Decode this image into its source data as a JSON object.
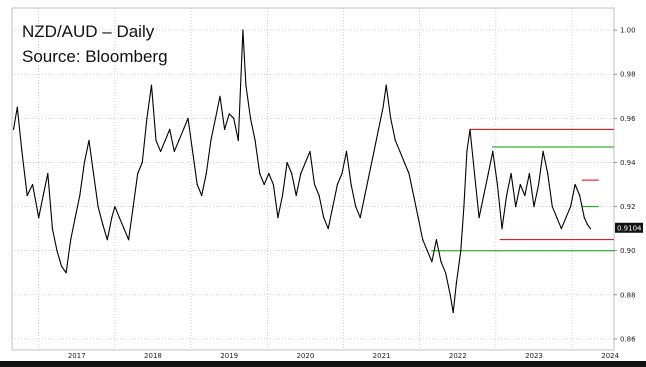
{
  "title": "NZD/AUD – Daily",
  "subtitle": "Source: Bloomberg",
  "chart_data": {
    "type": "line",
    "title": "NZD/AUD – Daily",
    "subtitle": "Source: Bloomberg",
    "xlabel": "",
    "ylabel": "",
    "xlim": [
      2016.65,
      2024.55
    ],
    "ylim": [
      0.855,
      1.01
    ],
    "yticks": [
      0.86,
      0.88,
      0.9,
      0.92,
      0.94,
      0.96,
      0.98,
      1.0
    ],
    "ytick_labels": [
      "0.86",
      "0.88",
      "0.90",
      "0.92",
      "0.94",
      "0.96",
      "0.98",
      "1.00"
    ],
    "xticks": [
      2017,
      2018,
      2019,
      2020,
      2021,
      2022,
      2023,
      2024
    ],
    "xtick_labels": [
      "2017",
      "2018",
      "2019",
      "2020",
      "2021",
      "2022",
      "2023",
      "2024"
    ],
    "grid": true,
    "last_value": 0.9104,
    "last_value_label": "0.9104",
    "series": [
      {
        "color": "#000000",
        "points": [
          [
            2016.67,
            0.955
          ],
          [
            2016.72,
            0.965
          ],
          [
            2016.78,
            0.945
          ],
          [
            2016.85,
            0.925
          ],
          [
            2016.92,
            0.93
          ],
          [
            2017.0,
            0.915
          ],
          [
            2017.06,
            0.925
          ],
          [
            2017.12,
            0.935
          ],
          [
            2017.18,
            0.91
          ],
          [
            2017.24,
            0.9
          ],
          [
            2017.3,
            0.893
          ],
          [
            2017.36,
            0.89
          ],
          [
            2017.42,
            0.905
          ],
          [
            2017.48,
            0.915
          ],
          [
            2017.54,
            0.925
          ],
          [
            2017.6,
            0.94
          ],
          [
            2017.66,
            0.95
          ],
          [
            2017.72,
            0.935
          ],
          [
            2017.78,
            0.92
          ],
          [
            2017.84,
            0.912
          ],
          [
            2017.9,
            0.905
          ],
          [
            2017.96,
            0.915
          ],
          [
            2018.0,
            0.92
          ],
          [
            2018.06,
            0.915
          ],
          [
            2018.12,
            0.91
          ],
          [
            2018.18,
            0.905
          ],
          [
            2018.24,
            0.92
          ],
          [
            2018.3,
            0.935
          ],
          [
            2018.36,
            0.94
          ],
          [
            2018.42,
            0.96
          ],
          [
            2018.48,
            0.975
          ],
          [
            2018.54,
            0.95
          ],
          [
            2018.6,
            0.945
          ],
          [
            2018.66,
            0.95
          ],
          [
            2018.72,
            0.955
          ],
          [
            2018.78,
            0.945
          ],
          [
            2018.84,
            0.95
          ],
          [
            2018.9,
            0.955
          ],
          [
            2018.96,
            0.96
          ],
          [
            2019.02,
            0.945
          ],
          [
            2019.08,
            0.93
          ],
          [
            2019.14,
            0.925
          ],
          [
            2019.2,
            0.935
          ],
          [
            2019.26,
            0.95
          ],
          [
            2019.32,
            0.96
          ],
          [
            2019.38,
            0.97
          ],
          [
            2019.44,
            0.955
          ],
          [
            2019.5,
            0.962
          ],
          [
            2019.56,
            0.96
          ],
          [
            2019.62,
            0.95
          ],
          [
            2019.68,
            1.0
          ],
          [
            2019.72,
            0.975
          ],
          [
            2019.78,
            0.96
          ],
          [
            2019.84,
            0.95
          ],
          [
            2019.9,
            0.935
          ],
          [
            2019.96,
            0.93
          ],
          [
            2020.02,
            0.935
          ],
          [
            2020.08,
            0.93
          ],
          [
            2020.14,
            0.915
          ],
          [
            2020.2,
            0.925
          ],
          [
            2020.26,
            0.94
          ],
          [
            2020.32,
            0.935
          ],
          [
            2020.38,
            0.925
          ],
          [
            2020.44,
            0.935
          ],
          [
            2020.5,
            0.94
          ],
          [
            2020.56,
            0.945
          ],
          [
            2020.62,
            0.93
          ],
          [
            2020.68,
            0.925
          ],
          [
            2020.74,
            0.915
          ],
          [
            2020.8,
            0.91
          ],
          [
            2020.86,
            0.92
          ],
          [
            2020.92,
            0.93
          ],
          [
            2020.98,
            0.935
          ],
          [
            2021.04,
            0.945
          ],
          [
            2021.1,
            0.93
          ],
          [
            2021.16,
            0.92
          ],
          [
            2021.22,
            0.915
          ],
          [
            2021.28,
            0.925
          ],
          [
            2021.34,
            0.935
          ],
          [
            2021.4,
            0.945
          ],
          [
            2021.46,
            0.955
          ],
          [
            2021.52,
            0.965
          ],
          [
            2021.56,
            0.975
          ],
          [
            2021.62,
            0.96
          ],
          [
            2021.68,
            0.95
          ],
          [
            2021.74,
            0.945
          ],
          [
            2021.8,
            0.94
          ],
          [
            2021.86,
            0.935
          ],
          [
            2021.92,
            0.925
          ],
          [
            2021.98,
            0.915
          ],
          [
            2022.04,
            0.905
          ],
          [
            2022.1,
            0.9
          ],
          [
            2022.16,
            0.895
          ],
          [
            2022.22,
            0.905
          ],
          [
            2022.28,
            0.895
          ],
          [
            2022.34,
            0.89
          ],
          [
            2022.4,
            0.88
          ],
          [
            2022.44,
            0.872
          ],
          [
            2022.48,
            0.885
          ],
          [
            2022.54,
            0.9
          ],
          [
            2022.58,
            0.92
          ],
          [
            2022.62,
            0.945
          ],
          [
            2022.66,
            0.955
          ],
          [
            2022.72,
            0.935
          ],
          [
            2022.78,
            0.915
          ],
          [
            2022.84,
            0.925
          ],
          [
            2022.9,
            0.935
          ],
          [
            2022.96,
            0.945
          ],
          [
            2023.02,
            0.93
          ],
          [
            2023.08,
            0.91
          ],
          [
            2023.14,
            0.925
          ],
          [
            2023.2,
            0.935
          ],
          [
            2023.26,
            0.92
          ],
          [
            2023.32,
            0.93
          ],
          [
            2023.38,
            0.925
          ],
          [
            2023.44,
            0.935
          ],
          [
            2023.5,
            0.92
          ],
          [
            2023.56,
            0.93
          ],
          [
            2023.62,
            0.945
          ],
          [
            2023.68,
            0.935
          ],
          [
            2023.74,
            0.92
          ],
          [
            2023.8,
            0.915
          ],
          [
            2023.86,
            0.91
          ],
          [
            2023.92,
            0.915
          ],
          [
            2023.98,
            0.92
          ],
          [
            2024.04,
            0.93
          ],
          [
            2024.1,
            0.925
          ],
          [
            2024.16,
            0.915
          ],
          [
            2024.2,
            0.912
          ],
          [
            2024.24,
            0.91
          ]
        ]
      }
    ],
    "reference_lines": [
      {
        "color": "#dc0000",
        "y": 0.955,
        "x_start": 2022.66,
        "x_end": 2024.55
      },
      {
        "color": "#00a000",
        "y": 0.947,
        "x_start": 2022.95,
        "x_end": 2024.55
      },
      {
        "color": "#00a000",
        "y": 0.9,
        "x_start": 2022.15,
        "x_end": 2024.55
      },
      {
        "color": "#dc0000",
        "y": 0.905,
        "x_start": 2023.05,
        "x_end": 2024.55
      },
      {
        "color": "#dc0000",
        "y": 0.932,
        "x_start": 2024.13,
        "x_end": 2024.35
      },
      {
        "color": "#00a000",
        "y": 0.92,
        "x_start": 2024.13,
        "x_end": 2024.35
      }
    ]
  }
}
